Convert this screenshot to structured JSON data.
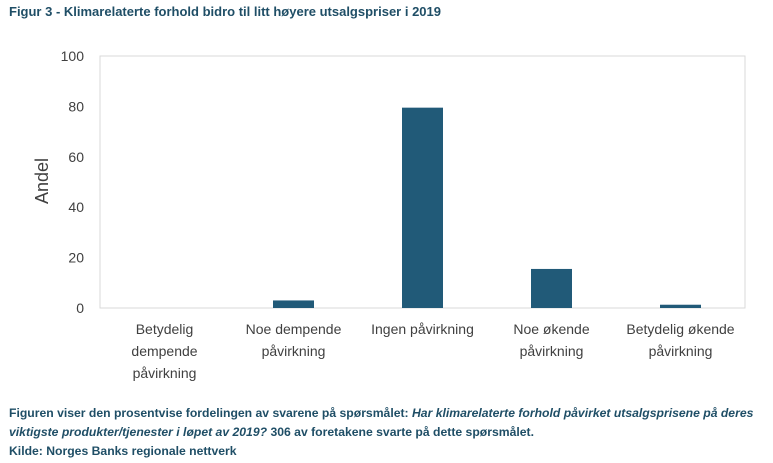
{
  "figure": {
    "title": "Figur 3 - Klimarelaterte forhold bidro til litt høyere utsalgspriser i 2019"
  },
  "caption": {
    "intro": "Figuren viser den prosentvise fordelingen av svarene på spørsmålet: ",
    "question": "Har klimarelaterte forhold påvirket utsalgsprisene på deres viktigste produkter/tjenester i løpet av 2019?",
    "responses": " 306 av foretakene svarte på dette spørsmålet.",
    "source": "Kilde: Norges Banks regionale nettverk"
  },
  "chart_data": {
    "type": "bar",
    "categories": [
      [
        "Betydelig",
        "dempende",
        "påvirkning"
      ],
      [
        "Noe dempende",
        "påvirkning"
      ],
      [
        "Ingen påvirkning"
      ],
      [
        "Noe økende",
        "påvirkning"
      ],
      [
        "Betydelig økende",
        "påvirkning"
      ]
    ],
    "values": [
      0,
      3,
      79.5,
      15.5,
      1.3
    ],
    "ylabel": "Andel",
    "xlabel": "",
    "ylim": [
      0,
      100
    ],
    "yticks": [
      0,
      20,
      40,
      60,
      80,
      100
    ],
    "grid": false,
    "colors": {
      "bar": "#215a78",
      "frame": "#d9d9d9",
      "text": "#404040",
      "title": "#1f4e66"
    }
  }
}
